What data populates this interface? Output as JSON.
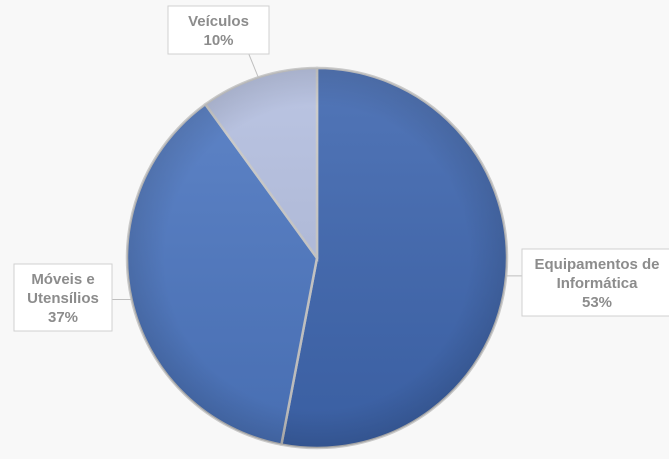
{
  "chart_data": {
    "type": "pie",
    "title": "",
    "slices": [
      {
        "label_lines": [
          "Equipamentos de",
          "Informática"
        ],
        "percent_label": "53%",
        "value": 53,
        "color": "#3f67b0"
      },
      {
        "label_lines": [
          "Móveis e",
          "Utensílios"
        ],
        "percent_label": "37%",
        "value": 37,
        "color": "#4e78c2"
      },
      {
        "label_lines": [
          "Veículos"
        ],
        "percent_label": "10%",
        "value": 10,
        "color": "#b4bfe0"
      }
    ],
    "start_angle": "12 o'clock",
    "direction": "clockwise",
    "legend": "none",
    "data_labels": "callouts"
  }
}
